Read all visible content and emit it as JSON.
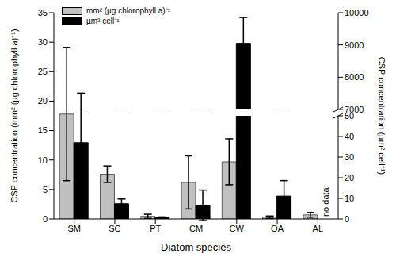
{
  "chart_data": {
    "type": "bar",
    "x_label": "Diatom species",
    "y_label": "CSP concentration (mm² (µg chlorophyll a)⁻¹)",
    "y2_label": "CSP concentration (µm² cell⁻¹)",
    "categories": [
      "SM",
      "SC",
      "PT",
      "CM",
      "CW",
      "OA",
      "AL"
    ],
    "series": [
      {
        "name": "mm² (µg chlorophyll a)⁻¹",
        "color": "#c0c0c0",
        "values": [
          17.8,
          7.6,
          0.45,
          6.2,
          9.7,
          0.3,
          0.7
        ],
        "errors": [
          11.3,
          1.4,
          0.35,
          4.5,
          3.9,
          0.2,
          0.4
        ]
      },
      {
        "name": "µm² cell⁻¹",
        "color": "#000000",
        "axis": "y2",
        "values": [
          37,
          7.4,
          0.7,
          6.6,
          9050,
          11.1,
          null
        ],
        "errors": [
          24,
          2.3,
          0.3,
          7.4,
          800,
          7.5,
          null
        ]
      }
    ],
    "ylim": [
      0,
      35
    ],
    "yticks": [
      0,
      5,
      10,
      15,
      20,
      25,
      30,
      35
    ],
    "y2lim": [
      0,
      10000
    ],
    "y2ticks": [
      0,
      10,
      20,
      30,
      40,
      50,
      7000,
      8000,
      9000,
      10000
    ],
    "y2_break": [
      50,
      7000
    ],
    "annotations": [
      {
        "text": "no data",
        "category": "AL"
      }
    ],
    "legend": "upper left"
  }
}
